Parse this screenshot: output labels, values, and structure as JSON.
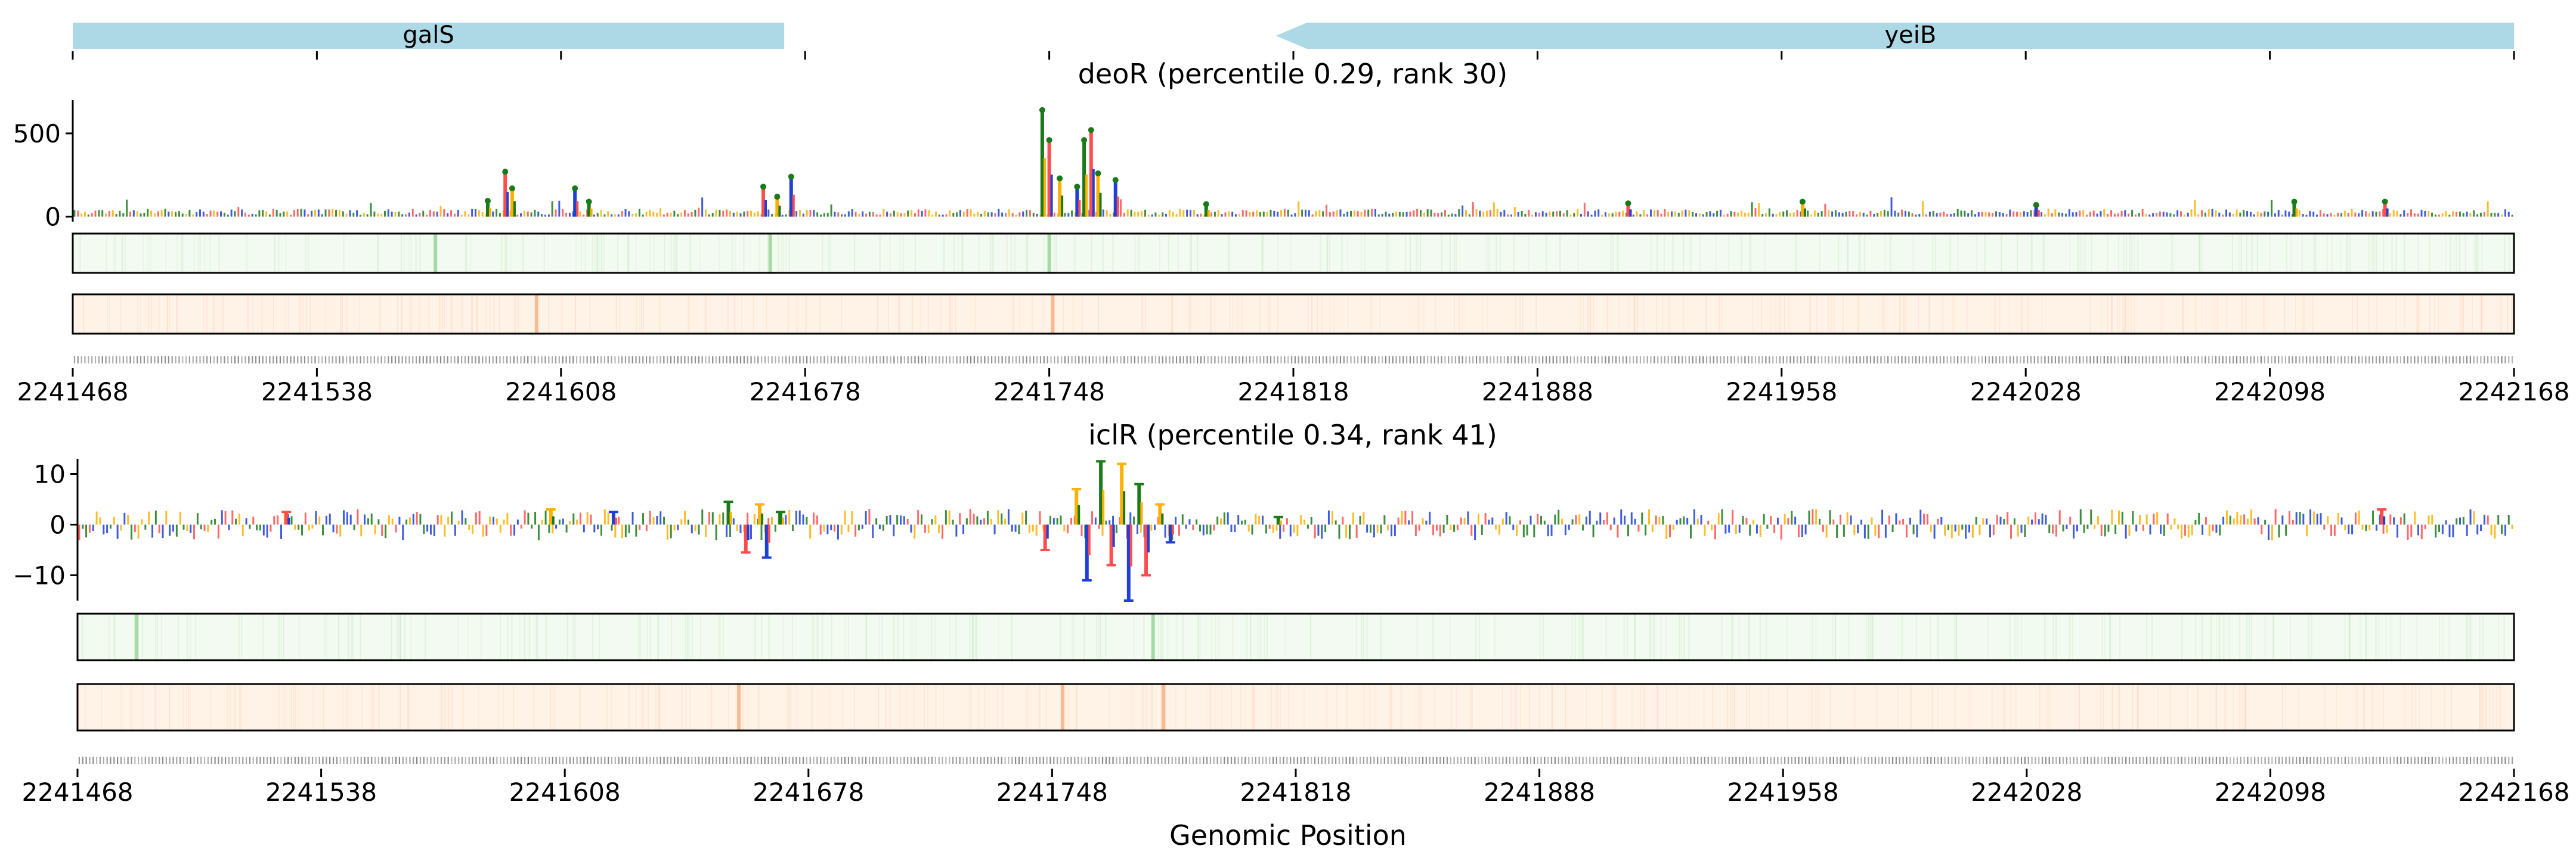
{
  "figure": {
    "xlabel": "Genomic Position"
  },
  "chart_data": [
    {
      "type": "area",
      "role": "gene-track",
      "genes": [
        {
          "name": "galS",
          "start": 2241468,
          "end": 2241672,
          "strand": "+"
        },
        {
          "name": "yeiB",
          "start": 2241813,
          "end": 2242168,
          "strand": "-"
        }
      ],
      "xlim": [
        2241468,
        2242168
      ]
    },
    {
      "type": "area",
      "title": "deoR (percentile 0.29, rank 30)",
      "xlim": [
        2241468,
        2242168
      ],
      "ylim": [
        -30,
        700
      ],
      "yticks": [
        0,
        500
      ],
      "xticks": [
        2241468,
        2241538,
        2241608,
        2241678,
        2241748,
        2241818,
        2241888,
        2241958,
        2242028,
        2242098,
        2242168
      ],
      "peaks": [
        {
          "x": 2241587,
          "y": 95
        },
        {
          "x": 2241592,
          "y": 270
        },
        {
          "x": 2241594,
          "y": 170
        },
        {
          "x": 2241612,
          "y": 170
        },
        {
          "x": 2241616,
          "y": 90
        },
        {
          "x": 2241666,
          "y": 180
        },
        {
          "x": 2241670,
          "y": 120
        },
        {
          "x": 2241674,
          "y": 240
        },
        {
          "x": 2241746,
          "y": 640
        },
        {
          "x": 2241748,
          "y": 460
        },
        {
          "x": 2241751,
          "y": 230
        },
        {
          "x": 2241756,
          "y": 180
        },
        {
          "x": 2241758,
          "y": 460
        },
        {
          "x": 2241760,
          "y": 520
        },
        {
          "x": 2241762,
          "y": 260
        },
        {
          "x": 2241767,
          "y": 220
        },
        {
          "x": 2241793,
          "y": 75
        },
        {
          "x": 2241914,
          "y": 80
        },
        {
          "x": 2241964,
          "y": 90
        },
        {
          "x": 2242031,
          "y": 70
        },
        {
          "x": 2242105,
          "y": 90
        },
        {
          "x": 2242131,
          "y": 90
        }
      ],
      "heat_tracks": [
        {
          "name": "green",
          "hotspots": [
            2241748,
            2241668,
            2241572
          ]
        },
        {
          "name": "orange",
          "hotspots": [
            2241601,
            2241749
          ]
        }
      ]
    },
    {
      "type": "area",
      "title": "iclR (percentile 0.34, rank 41)",
      "xlim": [
        2241468,
        2242168
      ],
      "ylim": [
        -15,
        13
      ],
      "yticks": [
        10,
        0,
        -10
      ],
      "xticks": [
        2241468,
        2241538,
        2241608,
        2241678,
        2241748,
        2241818,
        2241888,
        2241958,
        2242028,
        2242098,
        2242168
      ],
      "peaks": [
        {
          "x": 2241528,
          "y": 2.5
        },
        {
          "x": 2241604,
          "y": 3.0
        },
        {
          "x": 2241622,
          "y": 2.5
        },
        {
          "x": 2241655,
          "y": 4.5
        },
        {
          "x": 2241660,
          "y": -5.5
        },
        {
          "x": 2241664,
          "y": 4.0
        },
        {
          "x": 2241666,
          "y": -6.5
        },
        {
          "x": 2241670,
          "y": 2.5
        },
        {
          "x": 2241746,
          "y": -5.0
        },
        {
          "x": 2241755,
          "y": 7.0
        },
        {
          "x": 2241758,
          "y": -11.0
        },
        {
          "x": 2241762,
          "y": 12.5
        },
        {
          "x": 2241765,
          "y": -8.0
        },
        {
          "x": 2241768,
          "y": 12.0
        },
        {
          "x": 2241770,
          "y": -15.0
        },
        {
          "x": 2241773,
          "y": 8.0
        },
        {
          "x": 2241775,
          "y": -10.0
        },
        {
          "x": 2241779,
          "y": 4.0
        },
        {
          "x": 2241782,
          "y": -3.5
        },
        {
          "x": 2241813,
          "y": 1.5
        },
        {
          "x": 2242130,
          "y": 3.0
        }
      ],
      "heat_tracks": [
        {
          "name": "green",
          "hotspots": [
            2241777,
            2241485
          ]
        },
        {
          "name": "orange",
          "hotspots": [
            2241658,
            2241751,
            2241780
          ]
        }
      ]
    }
  ],
  "colors": {
    "gene": "#add8e6",
    "bases": [
      "#1a7a1a",
      "#ff4d4d",
      "#ffb000",
      "#1f3fd6"
    ],
    "heat_green_bg": "#f3faf1",
    "heat_green_hot": "#9ed69a",
    "heat_orange_bg": "#fff3e8",
    "heat_orange_hot": "#f8b38a"
  }
}
